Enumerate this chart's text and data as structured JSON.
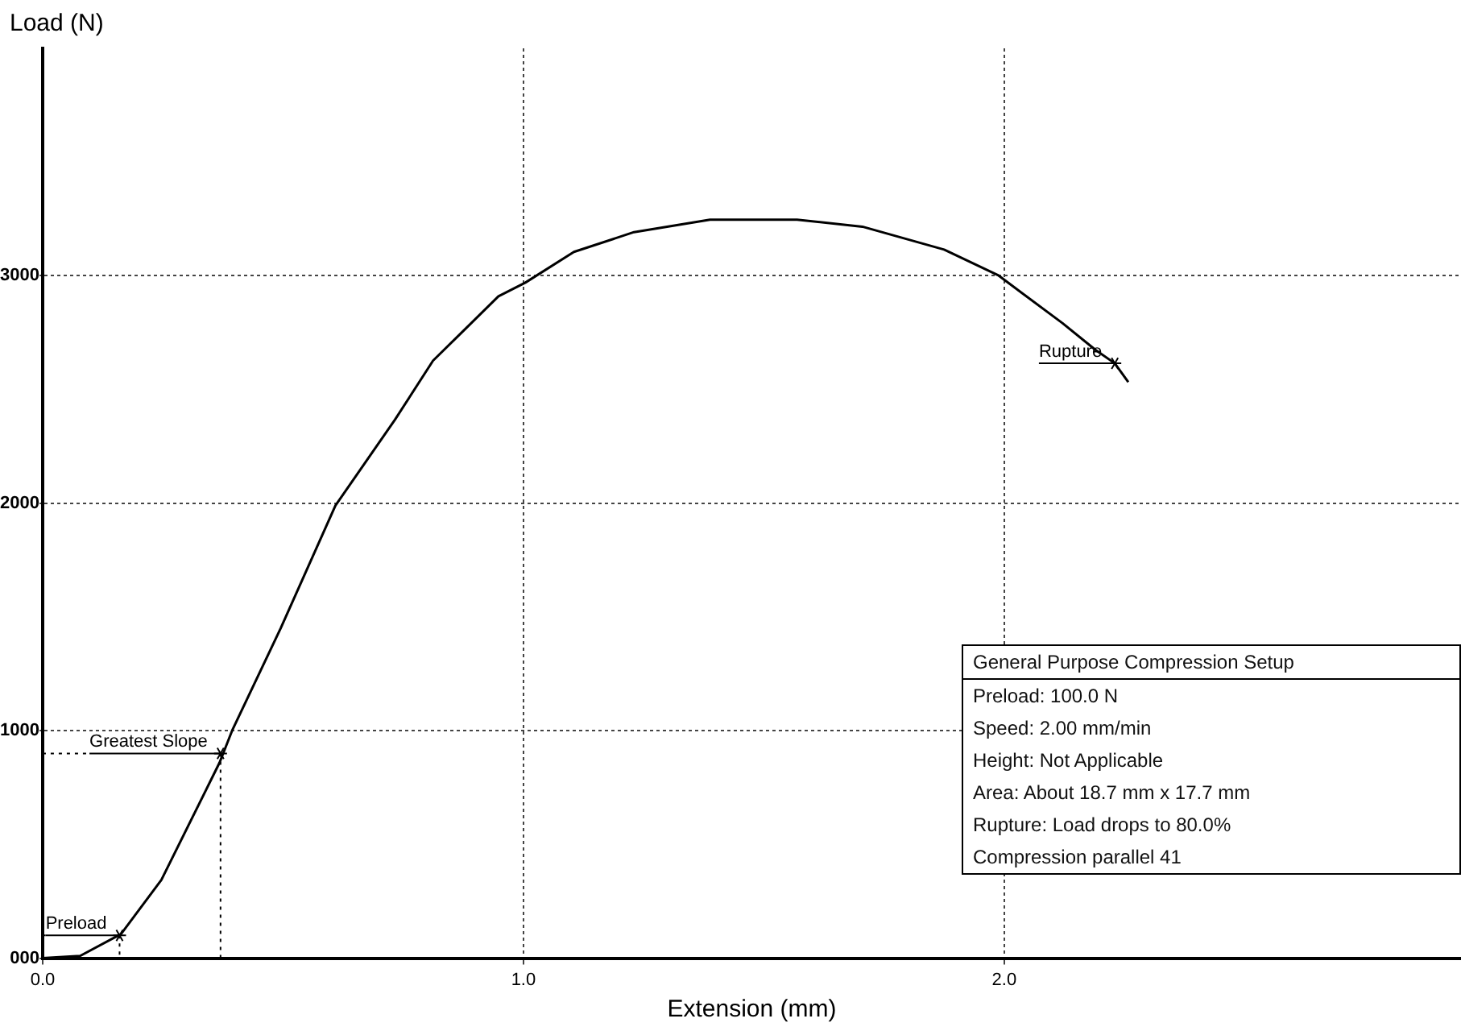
{
  "chart_data": {
    "type": "line",
    "xlabel": "Extension (mm)",
    "ylabel": "Load (N)",
    "x": [
      0,
      0.078,
      0.163,
      0.247,
      0.368,
      0.394,
      0.495,
      0.609,
      0.733,
      0.812,
      0.88,
      0.948,
      1.004,
      1.105,
      1.23,
      1.388,
      1.569,
      1.705,
      1.875,
      1.987,
      2.121,
      2.19,
      2.23,
      2.258
    ],
    "series": [
      {
        "color": "#000000",
        "values": [
          0,
          10,
          106,
          344,
          860,
          1000,
          1450,
          1990,
          2368,
          2627,
          2768,
          2910,
          2970,
          3105,
          3192,
          3247,
          3247,
          3216,
          3115,
          3003,
          2792,
          2674,
          2615,
          2533
        ]
      }
    ],
    "xlim": [
      0,
      2.95
    ],
    "xticks": [
      {
        "value": 0,
        "label": "0.0"
      },
      {
        "value": 1,
        "label": "1.0"
      },
      {
        "value": 2,
        "label": "2.0"
      }
    ],
    "ylim": [
      0,
      4000
    ],
    "yticks": [
      {
        "value": 0,
        "label": "000"
      },
      1000,
      2000,
      3000
    ],
    "grid": true,
    "legend": false,
    "marker": "none",
    "line_style": "solid",
    "annotations": [
      {
        "text": "Greatest Slope",
        "x": 0.37,
        "y": 900
      },
      {
        "text": "Preload",
        "x": 0.16,
        "y": 100
      },
      {
        "text": "Rupture",
        "x": 2.23,
        "y": 2615
      },
      "General Purpose Compression Setup",
      "Preload: 100.0 N",
      "Speed: 2.00 mm/min",
      "Height: Not Applicable",
      "Area: About 18.7 mm x 17.7 mm",
      "Rupture: Load drops to 80.0%",
      "Compression parallel 41"
    ]
  }
}
